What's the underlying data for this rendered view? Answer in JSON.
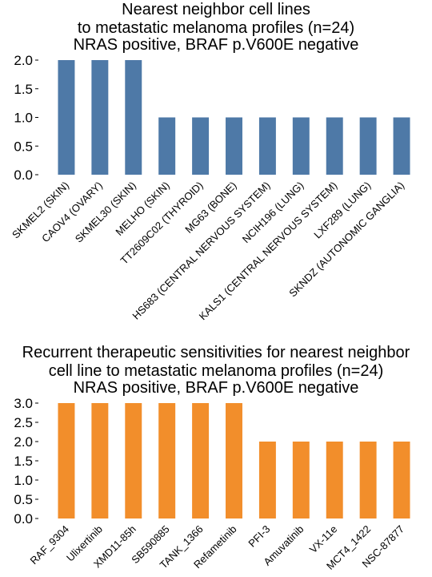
{
  "chart_data": [
    {
      "type": "bar",
      "title_lines": [
        "Nearest neighbor cell lines",
        "to metastatic melanoma profiles (n=24)",
        "NRAS positive, BRAF p.V600E negative"
      ],
      "categories": [
        "SKMEL2 (SKIN)",
        "CAOV4 (OVARY)",
        "SKMEL30 (SKIN)",
        "MELHO (SKIN)",
        "TT2609C02 (THYROID)",
        "MG63 (BONE)",
        "HS683 (CENTRAL NERVOUS SYSTEM)",
        "NCIH196 (LUNG)",
        "KALS1 (CENTRAL NERVOUS SYSTEM)",
        "LXF289 (LUNG)",
        "SKNDZ (AUTONOMIC GANGLIA)"
      ],
      "values": [
        2,
        2,
        2,
        1,
        1,
        1,
        1,
        1,
        1,
        1,
        1
      ],
      "yticks": [
        "0.0",
        "0.5",
        "1.0",
        "1.5",
        "2.0"
      ],
      "ylim": [
        0,
        2.0
      ],
      "grid": false,
      "color": "#4e79a7"
    },
    {
      "type": "bar",
      "title_lines": [
        "Recurrent therapeutic sensitivities for nearest neighbor",
        "cell line to metastatic melanoma profiles (n=24)",
        "NRAS positive, BRAF p.V600E negative"
      ],
      "categories": [
        "RAF_9304",
        "Ulixertinib",
        "XMD11-85h",
        "SB590885",
        "TANK_1366",
        "Refametinib",
        "PFI-3",
        "Amuvatinib",
        "VX-11e",
        "MCT4_1422",
        "NSC-87877"
      ],
      "values": [
        3,
        3,
        3,
        3,
        3,
        3,
        2,
        2,
        2,
        2,
        2
      ],
      "yticks": [
        "0.0",
        "0.5",
        "1.0",
        "1.5",
        "2.0",
        "2.5",
        "3.0"
      ],
      "ylim": [
        0,
        3.0
      ],
      "grid": false,
      "color": "#f28e2b"
    }
  ]
}
